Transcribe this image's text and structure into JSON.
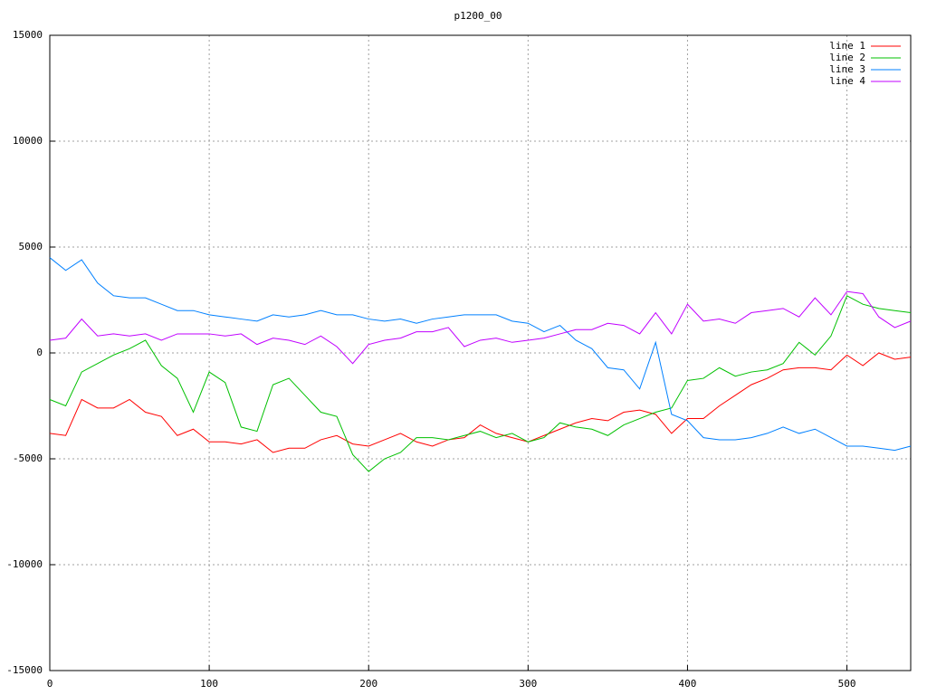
{
  "chart_data": {
    "type": "line",
    "title": "p1200_00",
    "x": [
      0,
      10,
      20,
      30,
      40,
      50,
      60,
      70,
      80,
      90,
      100,
      110,
      120,
      130,
      140,
      150,
      160,
      170,
      180,
      190,
      200,
      210,
      220,
      230,
      240,
      250,
      260,
      270,
      280,
      290,
      300,
      310,
      320,
      330,
      340,
      350,
      360,
      370,
      380,
      390,
      400,
      410,
      420,
      430,
      440,
      450,
      460,
      470,
      480,
      490,
      500,
      510,
      520,
      530,
      540
    ],
    "series": [
      {
        "name": "line 1",
        "color": "#ff0000",
        "values": [
          -3800,
          -3900,
          -2200,
          -2600,
          -2600,
          -2200,
          -2800,
          -3000,
          -3900,
          -3600,
          -4200,
          -4200,
          -4300,
          -4100,
          -4700,
          -4500,
          -4500,
          -4100,
          -3900,
          -4300,
          -4400,
          -4100,
          -3800,
          -4200,
          -4400,
          -4100,
          -4000,
          -3400,
          -3800,
          -4000,
          -4200,
          -3900,
          -3600,
          -3300,
          -3100,
          -3200,
          -2800,
          -2700,
          -2900,
          -3800,
          -3100,
          -3100,
          -2500,
          -2000,
          -1500,
          -1200,
          -800,
          -700,
          -700,
          -800,
          -100,
          -600,
          0,
          -300,
          -200
        ]
      },
      {
        "name": "line 2",
        "color": "#00c000",
        "values": [
          -2200,
          -2500,
          -900,
          -500,
          -100,
          200,
          600,
          -600,
          -1200,
          -2800,
          -900,
          -1400,
          -3500,
          -3700,
          -1500,
          -1200,
          -2000,
          -2800,
          -3000,
          -4800,
          -5600,
          -5000,
          -4700,
          -4000,
          -4000,
          -4100,
          -3900,
          -3700,
          -4000,
          -3800,
          -4200,
          -4000,
          -3300,
          -3500,
          -3600,
          -3900,
          -3400,
          -3100,
          -2800,
          -2600,
          -1300,
          -1200,
          -700,
          -1100,
          -900,
          -800,
          -500,
          500,
          -100,
          800,
          2700,
          2300,
          2100,
          2000,
          1900
        ]
      },
      {
        "name": "line 3",
        "color": "#0080ff",
        "values": [
          4500,
          3900,
          4400,
          3300,
          2700,
          2600,
          2600,
          2300,
          2000,
          2000,
          1800,
          1700,
          1600,
          1500,
          1800,
          1700,
          1800,
          2000,
          1800,
          1800,
          1600,
          1500,
          1600,
          1400,
          1600,
          1700,
          1800,
          1800,
          1800,
          1500,
          1400,
          1000,
          1300,
          600,
          200,
          -700,
          -800,
          -1700,
          500,
          -2900,
          -3200,
          -4000,
          -4100,
          -4100,
          -4000,
          -3800,
          -3500,
          -3800,
          -3600,
          -4000,
          -4400,
          -4400,
          -4500,
          -4600,
          -4400
        ]
      },
      {
        "name": "line 4",
        "color": "#c000ff",
        "values": [
          600,
          700,
          1600,
          800,
          900,
          800,
          900,
          600,
          900,
          900,
          900,
          800,
          900,
          400,
          700,
          600,
          400,
          800,
          300,
          -500,
          400,
          600,
          700,
          1000,
          1000,
          1200,
          300,
          600,
          700,
          500,
          600,
          700,
          900,
          1100,
          1100,
          1400,
          1300,
          900,
          1900,
          900,
          2300,
          1500,
          1600,
          1400,
          1900,
          2000,
          2100,
          1700,
          2600,
          1800,
          2900,
          2800,
          1700,
          1200,
          1500
        ]
      }
    ],
    "xlim": [
      0,
      540
    ],
    "xticks": [
      0,
      100,
      200,
      300,
      400,
      500
    ],
    "ylim": [
      -15000,
      15000
    ],
    "yticks": [
      -15000,
      -10000,
      -5000,
      0,
      5000,
      10000,
      15000
    ],
    "grid": true,
    "legend": "top-right"
  }
}
